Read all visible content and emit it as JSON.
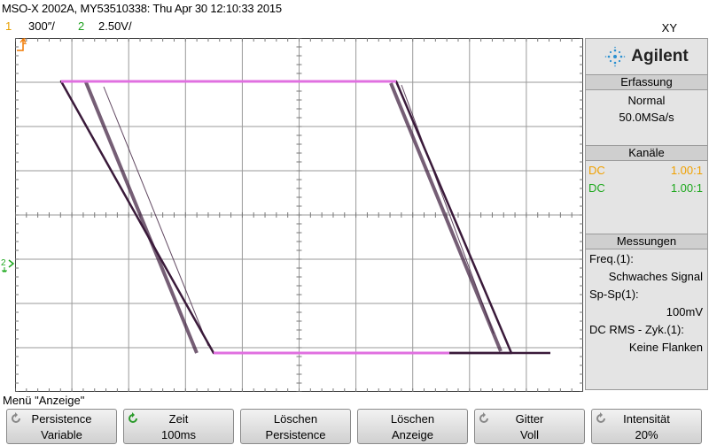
{
  "header": {
    "title": "MSO-X 2002A, MY53510338: Thu Apr 30 12:10:33 2015",
    "ch1_number": "1",
    "ch1_scale": "300″/",
    "ch2_number": "2",
    "ch2_scale": "2.50V/",
    "mode": "XY"
  },
  "markers": {
    "ch1_ground": "1",
    "ch2_ground": "2"
  },
  "panel": {
    "brand": "Agilent",
    "acquisition": {
      "header": "Erfassung",
      "mode": "Normal",
      "rate": "50.0MSa/s"
    },
    "channels": {
      "header": "Kanäle",
      "rows": [
        {
          "coupling": "DC",
          "ratio": "1.00:1",
          "color": "#f0a000"
        },
        {
          "coupling": "DC",
          "ratio": "1.00:1",
          "color": "#1ea81e"
        }
      ]
    },
    "measurements": {
      "header": "Messungen",
      "items": [
        {
          "label": "Freq.(1):",
          "value": "Schwaches Signal"
        },
        {
          "label": "Sp-Sp(1):",
          "value": "100mV"
        },
        {
          "label": "DC RMS - Zyk.(1):",
          "value": "Keine Flanken"
        }
      ]
    }
  },
  "menu": {
    "title": "Menü \"Anzeige\"",
    "softkeys": [
      {
        "line1": "Persistence",
        "line2": "Variable",
        "icon": "rotate-icon"
      },
      {
        "line1": "Zeit",
        "line2": "100ms",
        "icon": "rotate-icon"
      },
      {
        "line1": "Löschen",
        "line2": "Persistence",
        "icon": ""
      },
      {
        "line1": "Löschen",
        "line2": "Anzeige",
        "icon": ""
      },
      {
        "line1": "Gitter",
        "line2": "Voll",
        "icon": "rotate-icon"
      },
      {
        "line1": "Intensität",
        "line2": "20%",
        "icon": "rotate-icon"
      }
    ]
  },
  "colors": {
    "ch1": "#f0a000",
    "ch2": "#1ea81e",
    "trace": "#3a1a3a",
    "trace_highlight": "#e070e0"
  }
}
